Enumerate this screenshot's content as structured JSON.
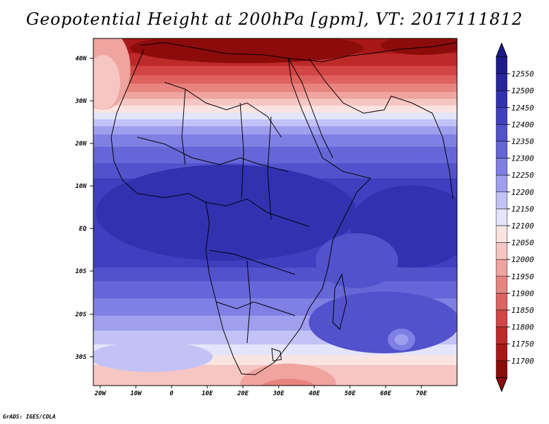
{
  "title": "Geopotential Height at 200hPa [gpm], VT: 2017111812",
  "credit": "GrADS: IGES/COLA",
  "map": {
    "lon_labels": [
      "20W",
      "10W",
      "0",
      "10E",
      "20E",
      "30E",
      "40E",
      "50E",
      "60E",
      "70E"
    ],
    "lat_labels": [
      "40N",
      "30N",
      "20N",
      "10N",
      "EQ",
      "10S",
      "20S",
      "30S"
    ]
  },
  "colorbar": {
    "levels": [
      "12550",
      "12500",
      "12450",
      "12400",
      "12350",
      "12300",
      "12250",
      "12200",
      "12150",
      "12100",
      "12050",
      "12000",
      "11950",
      "11900",
      "11850",
      "11800",
      "11750",
      "11700"
    ],
    "colors": [
      "#1e1a8c",
      "#28259e",
      "#3232b0",
      "#3f3fc0",
      "#5252cc",
      "#6666d8",
      "#7f7fe4",
      "#9f9fee",
      "#c2c2f6",
      "#e4e4fa",
      "#fae4e2",
      "#f5c6c2",
      "#efa4a0",
      "#e88480",
      "#de6360",
      "#d24545",
      "#be2a2a",
      "#a81818",
      "#8c0c0c"
    ]
  }
}
